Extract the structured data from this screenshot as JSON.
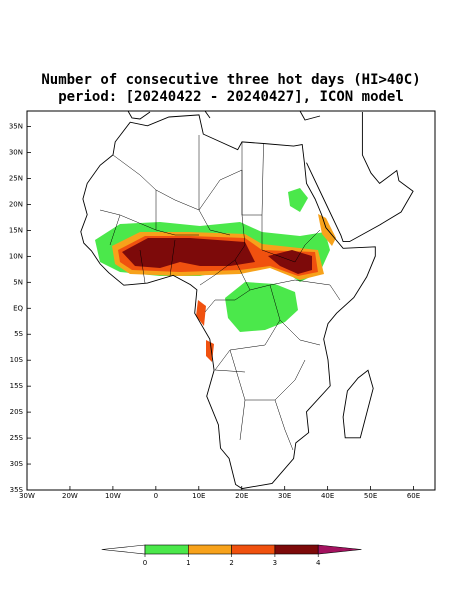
{
  "map": {
    "title": "Number of consecutive three hot days (HI>40C)",
    "subtitle": "period: [20240422 - 20240427], ICON model",
    "lon_range": [
      -30,
      65
    ],
    "lat_range": [
      -35,
      38
    ],
    "lon_ticks": [
      {
        "value": -30,
        "label": "30W"
      },
      {
        "value": -20,
        "label": "20W"
      },
      {
        "value": -10,
        "label": "10W"
      },
      0,
      {
        "value": 10,
        "label": "10E"
      },
      {
        "value": 20,
        "label": "20E"
      },
      {
        "value": 30,
        "label": "30E"
      },
      {
        "value": 40,
        "label": "40E"
      },
      {
        "value": 50,
        "label": "50E"
      },
      {
        "value": 60,
        "label": "60E"
      }
    ],
    "lat_ticks": [
      {
        "value": 35,
        "label": "35N"
      },
      {
        "value": 30,
        "label": "30N"
      },
      {
        "value": 25,
        "label": "25N"
      },
      {
        "value": 20,
        "label": "20N"
      },
      {
        "value": 15,
        "label": "15N"
      },
      {
        "value": 10,
        "label": "10N"
      },
      {
        "value": 5,
        "label": "5N"
      },
      {
        "value": 0,
        "label": "EQ"
      },
      {
        "value": -5,
        "label": "5S"
      },
      {
        "value": -10,
        "label": "10S"
      },
      {
        "value": -15,
        "label": "15S"
      },
      {
        "value": -20,
        "label": "20S"
      },
      {
        "value": -25,
        "label": "25S"
      },
      {
        "value": -30,
        "label": "30S"
      },
      {
        "value": -35,
        "label": "35S"
      }
    ],
    "colorbar": {
      "levels": [
        0,
        1,
        2,
        3,
        4
      ],
      "colors": [
        "#ffffff",
        "#4be84b",
        "#f7a21b",
        "#f0510f",
        "#7d0a0a",
        "#a3125f"
      ]
    }
  }
}
